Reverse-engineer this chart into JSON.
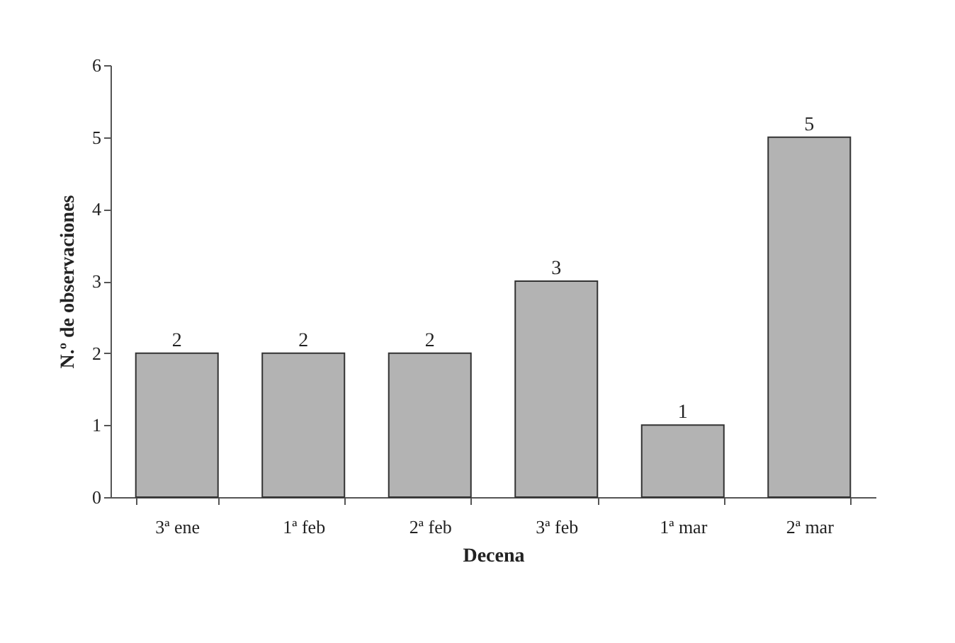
{
  "chart_data": {
    "type": "bar",
    "xlabel": "Decena",
    "ylabel": "N.º de observaciones",
    "categories": [
      "3ª ene",
      "1ª feb",
      "2ª feb",
      "3ª feb",
      "1ª mar",
      "2ª mar"
    ],
    "values": [
      2,
      2,
      2,
      3,
      1,
      5
    ],
    "color": "#b3b3b3",
    "ylim": [
      0,
      6
    ],
    "yticks": [
      0,
      1,
      2,
      3,
      4,
      5,
      6
    ],
    "data_labels": true,
    "grid": false
  }
}
